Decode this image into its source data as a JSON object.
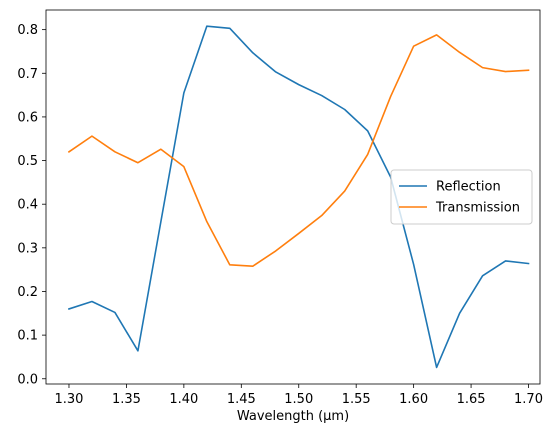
{
  "chart_data": {
    "type": "line",
    "title": "",
    "xlabel": "Wavelength (μm)",
    "ylabel": "",
    "xlim": [
      1.28,
      1.71
    ],
    "ylim": [
      -0.012,
      0.845
    ],
    "xticks": [
      1.3,
      1.35,
      1.4,
      1.45,
      1.5,
      1.55,
      1.6,
      1.65,
      1.7
    ],
    "yticks": [
      0.0,
      0.1,
      0.2,
      0.3,
      0.4,
      0.5,
      0.6,
      0.7,
      0.8
    ],
    "grid": false,
    "legend_position": "center-right",
    "x": [
      1.3,
      1.32,
      1.34,
      1.36,
      1.38,
      1.4,
      1.42,
      1.44,
      1.46,
      1.48,
      1.5,
      1.52,
      1.54,
      1.56,
      1.58,
      1.6,
      1.62,
      1.64,
      1.66,
      1.68,
      1.7
    ],
    "series": [
      {
        "name": "Reflection",
        "color": "#1f77b4",
        "values": [
          0.16,
          0.177,
          0.152,
          0.064,
          0.36,
          0.655,
          0.808,
          0.803,
          0.747,
          0.703,
          0.674,
          0.649,
          0.617,
          0.568,
          0.462,
          0.262,
          0.026,
          0.15,
          0.236,
          0.27,
          0.264
        ]
      },
      {
        "name": "Transmission",
        "color": "#ff7f0e",
        "values": [
          0.52,
          0.556,
          0.52,
          0.495,
          0.526,
          0.486,
          0.36,
          0.261,
          0.258,
          0.293,
          0.333,
          0.374,
          0.43,
          0.514,
          0.647,
          0.762,
          0.788,
          0.748,
          0.713,
          0.704,
          0.707
        ]
      }
    ]
  }
}
